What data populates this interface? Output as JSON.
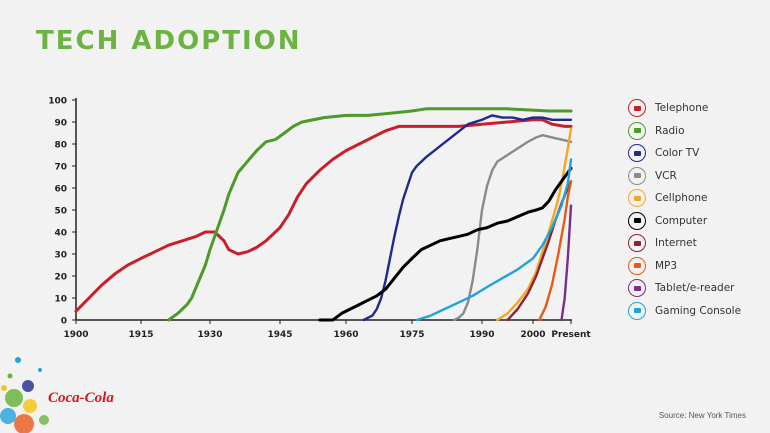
{
  "title": "TECH ADOPTION",
  "source": "Source: New York Times",
  "logo_text": "Coca-Cola",
  "chart_data": {
    "type": "line",
    "title": "TECH ADOPTION",
    "xlabel": "",
    "ylabel": "",
    "ylim": [
      0,
      100
    ],
    "xlim": [
      1900,
      2012
    ],
    "grid": false,
    "legend_position": "right",
    "x_ticks": [
      {
        "value": 1900,
        "label": "1900"
      },
      {
        "value": 1915,
        "label": "1915"
      },
      {
        "value": 1930,
        "label": "1930"
      },
      {
        "value": 1945,
        "label": "1945"
      },
      {
        "value": 1960,
        "label": "1960"
      },
      {
        "value": 1975,
        "label": "1975"
      },
      {
        "value": 1990,
        "label": "1990"
      },
      {
        "value": 2000,
        "label": "2000"
      },
      {
        "value": 2012,
        "label": "Present"
      }
    ],
    "y_ticks": [
      0,
      10,
      20,
      30,
      40,
      50,
      60,
      70,
      80,
      90,
      100
    ],
    "series": [
      {
        "name": "Telephone",
        "color": "#c8202a",
        "icon": "telephone-icon",
        "points": [
          [
            1900,
            4
          ],
          [
            1903,
            10
          ],
          [
            1906,
            16
          ],
          [
            1909,
            21
          ],
          [
            1912,
            25
          ],
          [
            1915,
            28
          ],
          [
            1918,
            31
          ],
          [
            1921,
            34
          ],
          [
            1924,
            36
          ],
          [
            1927,
            38
          ],
          [
            1929,
            40
          ],
          [
            1931,
            40
          ],
          [
            1933,
            36
          ],
          [
            1934,
            32
          ],
          [
            1936,
            30
          ],
          [
            1938,
            31
          ],
          [
            1940,
            33
          ],
          [
            1942,
            36
          ],
          [
            1945,
            42
          ],
          [
            1947,
            48
          ],
          [
            1949,
            56
          ],
          [
            1951,
            62
          ],
          [
            1954,
            68
          ],
          [
            1957,
            73
          ],
          [
            1960,
            77
          ],
          [
            1963,
            80
          ],
          [
            1966,
            83
          ],
          [
            1969,
            86
          ],
          [
            1972,
            88
          ],
          [
            1978,
            88
          ],
          [
            1985,
            88
          ],
          [
            1990,
            89
          ],
          [
            1995,
            90
          ],
          [
            2000,
            91
          ],
          [
            2003,
            91
          ],
          [
            2006,
            89
          ],
          [
            2010,
            88
          ],
          [
            2012,
            88
          ]
        ]
      },
      {
        "name": "Radio",
        "color": "#4c9a2a",
        "icon": "radio-icon",
        "points": [
          [
            1921,
            0
          ],
          [
            1923,
            3
          ],
          [
            1924,
            5
          ],
          [
            1925,
            7
          ],
          [
            1926,
            10
          ],
          [
            1927,
            15
          ],
          [
            1928,
            20
          ],
          [
            1929,
            25
          ],
          [
            1930,
            32
          ],
          [
            1931,
            38
          ],
          [
            1932,
            44
          ],
          [
            1933,
            50
          ],
          [
            1934,
            57
          ],
          [
            1935,
            62
          ],
          [
            1936,
            67
          ],
          [
            1938,
            72
          ],
          [
            1940,
            77
          ],
          [
            1942,
            81
          ],
          [
            1944,
            82
          ],
          [
            1946,
            85
          ],
          [
            1948,
            88
          ],
          [
            1950,
            90
          ],
          [
            1955,
            92
          ],
          [
            1960,
            93
          ],
          [
            1965,
            93
          ],
          [
            1970,
            94
          ],
          [
            1975,
            95
          ],
          [
            1978,
            96
          ],
          [
            1985,
            96
          ],
          [
            1995,
            96
          ],
          [
            2005,
            95
          ],
          [
            2012,
            95
          ]
        ]
      },
      {
        "name": "Color TV",
        "color": "#1f2a8a",
        "icon": "color-tv-icon",
        "points": [
          [
            1964,
            0
          ],
          [
            1966,
            2
          ],
          [
            1967,
            5
          ],
          [
            1968,
            10
          ],
          [
            1969,
            18
          ],
          [
            1970,
            28
          ],
          [
            1971,
            38
          ],
          [
            1972,
            47
          ],
          [
            1973,
            55
          ],
          [
            1974,
            61
          ],
          [
            1975,
            67
          ],
          [
            1976,
            70
          ],
          [
            1978,
            74
          ],
          [
            1981,
            79
          ],
          [
            1984,
            84
          ],
          [
            1987,
            89
          ],
          [
            1990,
            91
          ],
          [
            1992,
            93
          ],
          [
            1994,
            92
          ],
          [
            1996,
            92
          ],
          [
            1998,
            91
          ],
          [
            2000,
            92
          ],
          [
            2003,
            92
          ],
          [
            2006,
            91
          ],
          [
            2010,
            91
          ],
          [
            2012,
            91
          ]
        ]
      },
      {
        "name": "VCR",
        "color": "#8a8a8a",
        "icon": "vcr-icon",
        "points": [
          [
            1984,
            0
          ],
          [
            1985,
            1
          ],
          [
            1986,
            3
          ],
          [
            1987,
            8
          ],
          [
            1988,
            18
          ],
          [
            1989,
            32
          ],
          [
            1990,
            50
          ],
          [
            1991,
            61
          ],
          [
            1992,
            68
          ],
          [
            1993,
            72
          ],
          [
            1995,
            75
          ],
          [
            1997,
            78
          ],
          [
            1999,
            81
          ],
          [
            2001,
            83
          ],
          [
            2003,
            84
          ],
          [
            2006,
            83
          ],
          [
            2009,
            82
          ],
          [
            2012,
            81
          ]
        ]
      },
      {
        "name": "Cellphone",
        "color": "#f6a623",
        "icon": "cellphone-icon",
        "points": [
          [
            1993,
            0
          ],
          [
            1995,
            3
          ],
          [
            1997,
            8
          ],
          [
            1999,
            14
          ],
          [
            2001,
            22
          ],
          [
            2003,
            31
          ],
          [
            2005,
            40
          ],
          [
            2006,
            45
          ],
          [
            2007,
            50
          ],
          [
            2008,
            55
          ],
          [
            2009,
            62
          ],
          [
            2010,
            70
          ],
          [
            2011,
            78
          ],
          [
            2012,
            87
          ]
        ]
      },
      {
        "name": "Computer",
        "color": "#000000",
        "icon": "computer-icon",
        "points": [
          [
            1954,
            0
          ],
          [
            1957,
            0
          ],
          [
            1959,
            3
          ],
          [
            1961,
            5
          ],
          [
            1963,
            7
          ],
          [
            1965,
            9
          ],
          [
            1967,
            11
          ],
          [
            1969,
            14
          ],
          [
            1971,
            19
          ],
          [
            1973,
            24
          ],
          [
            1975,
            28
          ],
          [
            1977,
            32
          ],
          [
            1979,
            34
          ],
          [
            1981,
            36
          ],
          [
            1983,
            37
          ],
          [
            1985,
            38
          ],
          [
            1987,
            39
          ],
          [
            1989,
            41
          ],
          [
            1991,
            42
          ],
          [
            1993,
            44
          ],
          [
            1995,
            45
          ],
          [
            1997,
            47
          ],
          [
            1999,
            49
          ],
          [
            2001,
            50
          ],
          [
            2003,
            51
          ],
          [
            2005,
            54
          ],
          [
            2007,
            59
          ],
          [
            2009,
            63
          ],
          [
            2011,
            67
          ],
          [
            2012,
            69
          ]
        ]
      },
      {
        "name": "Internet",
        "color": "#8b2332",
        "icon": "internet-icon",
        "points": [
          [
            1995,
            0
          ],
          [
            1997,
            5
          ],
          [
            1999,
            12
          ],
          [
            2001,
            20
          ],
          [
            2003,
            28
          ],
          [
            2005,
            36
          ],
          [
            2007,
            45
          ],
          [
            2009,
            53
          ],
          [
            2011,
            60
          ],
          [
            2012,
            63
          ]
        ]
      },
      {
        "name": "MP3",
        "color": "#e8591a",
        "icon": "mp3-icon",
        "points": [
          [
            2002,
            0
          ],
          [
            2004,
            6
          ],
          [
            2006,
            16
          ],
          [
            2008,
            30
          ],
          [
            2010,
            46
          ],
          [
            2011,
            56
          ],
          [
            2012,
            63
          ]
        ]
      },
      {
        "name": "Tablet/e-reader",
        "color": "#7b2d8e",
        "icon": "tablet-icon",
        "points": [
          [
            2009,
            0
          ],
          [
            2010,
            10
          ],
          [
            2011,
            28
          ],
          [
            2012,
            52
          ]
        ]
      },
      {
        "name": "Gaming Console",
        "color": "#1fa3dc",
        "icon": "gaming-console-icon",
        "points": [
          [
            1976,
            0
          ],
          [
            1979,
            2
          ],
          [
            1982,
            5
          ],
          [
            1985,
            8
          ],
          [
            1988,
            11
          ],
          [
            1991,
            15
          ],
          [
            1994,
            19
          ],
          [
            1997,
            23
          ],
          [
            2000,
            28
          ],
          [
            2003,
            34
          ],
          [
            2006,
            42
          ],
          [
            2009,
            52
          ],
          [
            2011,
            62
          ],
          [
            2012,
            73
          ]
        ]
      }
    ]
  }
}
